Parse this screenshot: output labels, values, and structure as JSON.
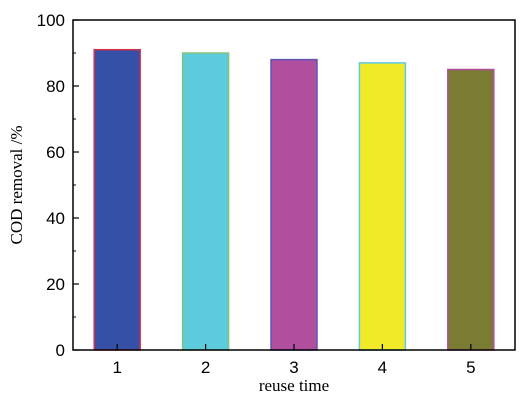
{
  "chart_data": {
    "type": "bar",
    "title": "",
    "xlabel": "reuse time",
    "ylabel": "COD removal /%",
    "categories": [
      "1",
      "2",
      "3",
      "4",
      "5"
    ],
    "values": [
      91,
      90,
      88,
      87,
      85
    ],
    "ylim": [
      0,
      100
    ],
    "yticks": [
      0,
      20,
      40,
      60,
      80,
      100
    ],
    "grid": false,
    "legend": "none",
    "colors": {
      "fills": [
        "#3650a8",
        "#5ccbdc",
        "#b14f9f",
        "#f1ea28",
        "#7b7c34"
      ],
      "edges": [
        "#d4304a",
        "#88c27e",
        "#5f55b8",
        "#63c9e2",
        "#b14f9f"
      ]
    }
  }
}
